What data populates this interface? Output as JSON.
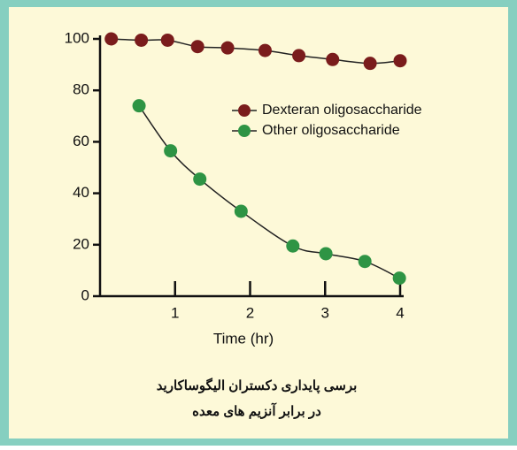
{
  "chart_data": {
    "type": "line",
    "xlabel": "Time (hr)",
    "xlim": [
      0,
      4
    ],
    "xticks": [
      1,
      2,
      3,
      4
    ],
    "ylim": [
      0,
      100
    ],
    "yticks": [
      0,
      20,
      40,
      60,
      80,
      100
    ],
    "grid": false,
    "series": [
      {
        "name": "Dexteran oligosaccharide",
        "color": "#7a1c1c",
        "x": [
          0.15,
          0.55,
          0.9,
          1.3,
          1.7,
          2.2,
          2.65,
          3.1,
          3.6,
          4.0
        ],
        "values": [
          100,
          99.5,
          99.5,
          97,
          96.5,
          95.5,
          93.5,
          92,
          90.5,
          91.5
        ]
      },
      {
        "name": "Other oligosaccharide",
        "color": "#2e9444",
        "x": [
          0.52,
          0.94,
          1.33,
          1.88,
          2.57,
          3.01,
          3.53,
          3.99
        ],
        "values": [
          74,
          56.5,
          45.5,
          33,
          19.5,
          16.5,
          13.5,
          7
        ]
      }
    ],
    "caption": [
      "برسی پایداری دکستران الیگوساکارید",
      "در برابر آنزیم های معده"
    ]
  }
}
